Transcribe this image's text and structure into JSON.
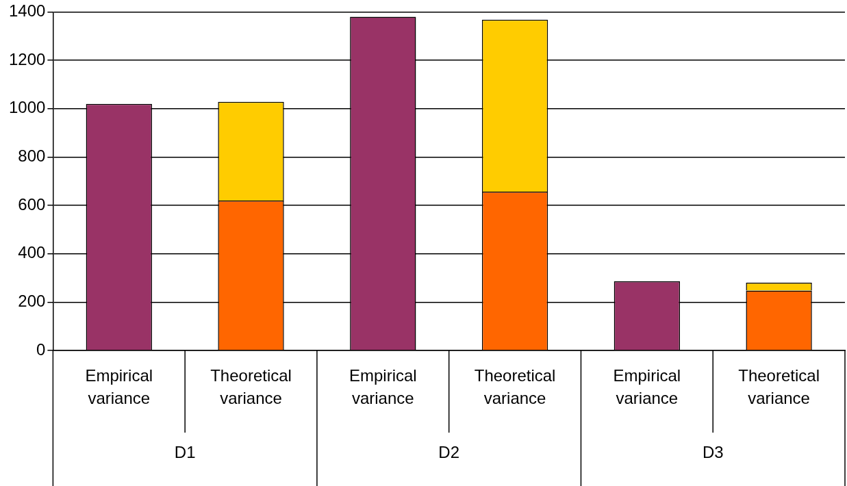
{
  "chart_data": {
    "type": "bar",
    "stacked": true,
    "categories": [
      "Empirical variance",
      "Theoretical variance",
      "Empirical variance",
      "Theoretical variance",
      "Empirical variance",
      "Theoretical variance"
    ],
    "series": [
      {
        "color": "#993366",
        "values": [
          1020,
          null,
          1380,
          null,
          286,
          null
        ]
      },
      {
        "color": "#ff6600",
        "values": [
          null,
          620,
          null,
          657,
          null,
          248
        ]
      },
      {
        "color": "#ffcc00",
        "values": [
          null,
          408,
          null,
          711,
          null,
          32
        ]
      }
    ],
    "ylim": [
      0,
      1400
    ],
    "yticks": [
      0,
      200,
      400,
      600,
      800,
      1000,
      1200,
      1400
    ],
    "grid": "y",
    "legend": false,
    "annotations": [
      "D1",
      "D2",
      "D3"
    ]
  }
}
